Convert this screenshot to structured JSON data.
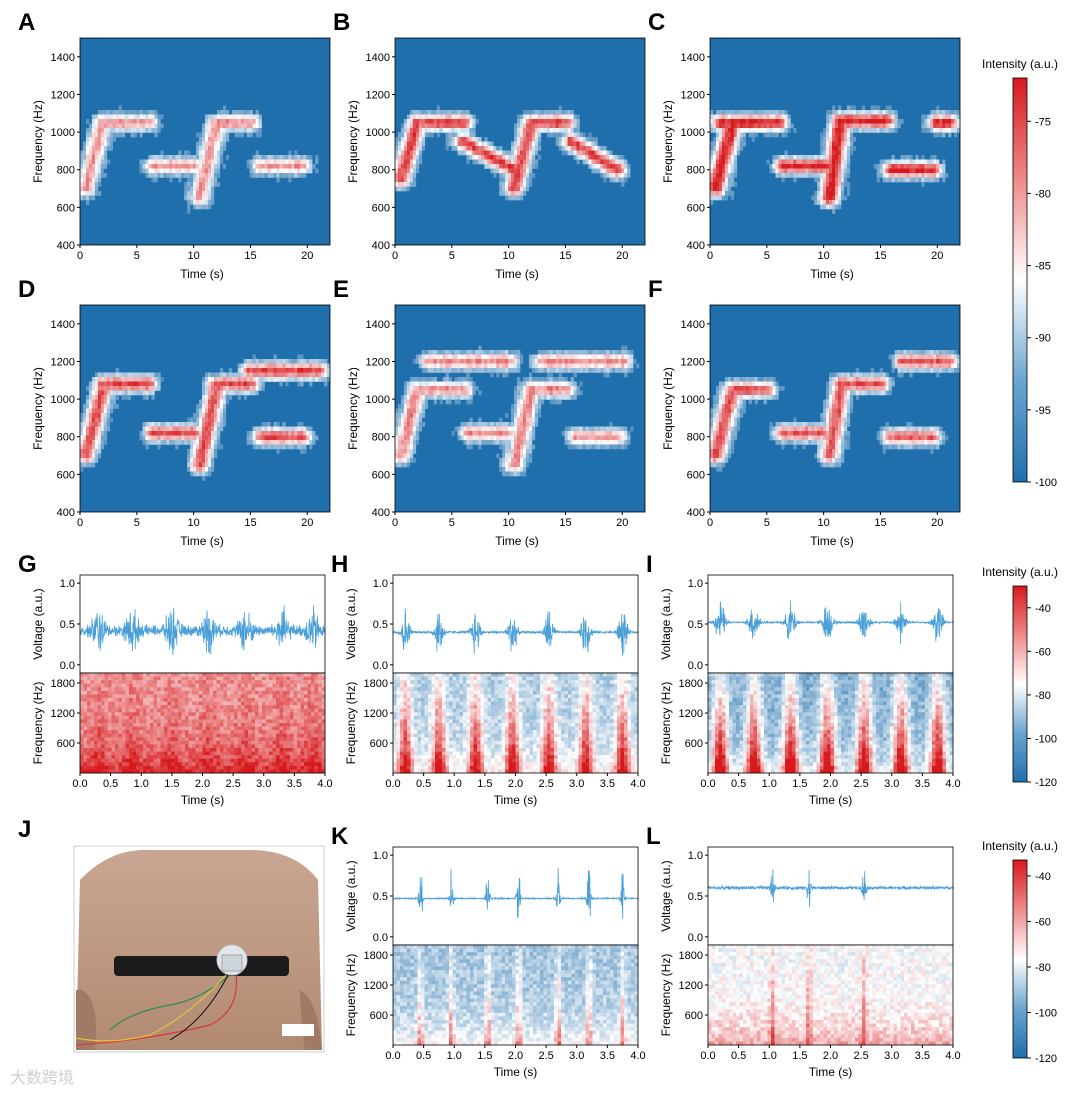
{
  "watermark": "大数跨境",
  "colors": {
    "blue": "#1f6fad",
    "white": "#ffffff",
    "red": "#d7191c",
    "wave": "#4a9fd8"
  },
  "chart_data": [
    {
      "panel": "A",
      "type": "heatmap",
      "xlabel": "Time (s)",
      "ylabel": "Frequency (Hz)",
      "xlim": [
        0,
        22
      ],
      "ylim": [
        400,
        1500
      ],
      "xticks": [
        "0",
        "5",
        "10",
        "15",
        "20"
      ],
      "yticks": [
        "400",
        "600",
        "800",
        "1000",
        "1200",
        "1400"
      ],
      "ridges": [
        [
          0.5,
          700,
          2.0,
          1050
        ],
        [
          2.0,
          1050,
          6.0,
          1050
        ],
        [
          6.5,
          820,
          10.0,
          820
        ],
        [
          10.5,
          650,
          12.0,
          1050
        ],
        [
          12.0,
          1050,
          15.0,
          1050
        ],
        [
          16.0,
          820,
          19.5,
          820
        ]
      ],
      "ridge_peak": 0.45
    },
    {
      "panel": "B",
      "type": "heatmap",
      "xlabel": "Time (s)",
      "ylabel": "Frequency (Hz)",
      "xlim": [
        0,
        22
      ],
      "ylim": [
        400,
        1500
      ],
      "xticks": [
        "0",
        "5",
        "10",
        "15",
        "20"
      ],
      "yticks": [
        "400",
        "600",
        "800",
        "1000",
        "1200",
        "1400"
      ],
      "ridges": [
        [
          0.5,
          750,
          2.0,
          1050
        ],
        [
          2.0,
          1050,
          6.0,
          1050
        ],
        [
          6.0,
          950,
          10.5,
          800
        ],
        [
          10.5,
          700,
          12.0,
          1050
        ],
        [
          12.0,
          1050,
          15.0,
          1050
        ],
        [
          15.5,
          950,
          19.5,
          800
        ]
      ],
      "ridge_peak": 0.85
    },
    {
      "panel": "C",
      "type": "heatmap",
      "xlabel": "Time (s)",
      "ylabel": "Frequency (Hz)",
      "xlim": [
        0,
        22
      ],
      "ylim": [
        400,
        1500
      ],
      "xticks": [
        "0",
        "5",
        "10",
        "15",
        "20"
      ],
      "yticks": [
        "400",
        "600",
        "800",
        "1000",
        "1200",
        "1400"
      ],
      "ridges": [
        [
          0.5,
          700,
          2.0,
          1050
        ],
        [
          1.0,
          1050,
          6.0,
          1050
        ],
        [
          6.5,
          820,
          10.0,
          820
        ],
        [
          10.5,
          650,
          11.5,
          1050
        ],
        [
          11.5,
          1060,
          15.5,
          1060
        ],
        [
          16.0,
          800,
          19.5,
          800
        ],
        [
          20.0,
          1050,
          21.0,
          1050
        ]
      ],
      "ridge_peak": 1.0
    },
    {
      "panel": "D",
      "type": "heatmap",
      "xlabel": "Time (s)",
      "ylabel": "Frequency (Hz)",
      "xlim": [
        0,
        22
      ],
      "ylim": [
        400,
        1500
      ],
      "xticks": [
        "0",
        "5",
        "10",
        "15",
        "20"
      ],
      "yticks": [
        "400",
        "600",
        "800",
        "1000",
        "1200",
        "1400"
      ],
      "ridges": [
        [
          0.5,
          700,
          2.0,
          1050
        ],
        [
          2.0,
          1080,
          6.0,
          1080
        ],
        [
          6.5,
          820,
          10.0,
          820
        ],
        [
          10.5,
          650,
          12.0,
          1050
        ],
        [
          12.0,
          1080,
          15.0,
          1080
        ],
        [
          16.0,
          800,
          19.5,
          800
        ],
        [
          15.0,
          1150,
          21.0,
          1150
        ]
      ],
      "ridge_peak": 0.8
    },
    {
      "panel": "E",
      "type": "heatmap",
      "xlabel": "Time (s)",
      "ylabel": "Frequency (Hz)",
      "xlim": [
        0,
        22
      ],
      "ylim": [
        400,
        1500
      ],
      "xticks": [
        "0",
        "5",
        "10",
        "15",
        "20"
      ],
      "yticks": [
        "400",
        "600",
        "800",
        "1000",
        "1200",
        "1400"
      ],
      "ridges": [
        [
          0.5,
          700,
          2.0,
          1050
        ],
        [
          2.0,
          1050,
          6.0,
          1050
        ],
        [
          6.5,
          820,
          10.0,
          820
        ],
        [
          10.5,
          650,
          12.0,
          1050
        ],
        [
          12.0,
          1050,
          15.0,
          1050
        ],
        [
          16.0,
          800,
          19.5,
          800
        ],
        [
          3.0,
          1200,
          10.0,
          1200
        ],
        [
          13.0,
          1200,
          20.0,
          1200
        ]
      ],
      "ridge_peak": 0.5
    },
    {
      "panel": "F",
      "type": "heatmap",
      "xlabel": "Time (s)",
      "ylabel": "Frequency (Hz)",
      "xlim": [
        0,
        22
      ],
      "ylim": [
        400,
        1500
      ],
      "xticks": [
        "0",
        "5",
        "10",
        "15",
        "20"
      ],
      "yticks": [
        "400",
        "600",
        "800",
        "1000",
        "1200",
        "1400"
      ],
      "ridges": [
        [
          0.5,
          700,
          2.0,
          1050
        ],
        [
          2.0,
          1050,
          5.0,
          1050
        ],
        [
          6.5,
          820,
          10.0,
          820
        ],
        [
          10.5,
          700,
          11.5,
          1050
        ],
        [
          11.5,
          1080,
          15.0,
          1080
        ],
        [
          16.0,
          800,
          19.5,
          800
        ],
        [
          17.0,
          1200,
          21.0,
          1200
        ]
      ],
      "ridge_peak": 0.75
    },
    {
      "panel": "G",
      "type": "line+heatmap",
      "ylabel_top": "Voltage (a.u.)",
      "ylabel_bottom": "Frequency (Hz)",
      "xlabel": "Time (s)",
      "xlim": [
        0,
        4
      ],
      "ylim_top": [
        -0.1,
        1.1
      ],
      "ylim_bottom": [
        0,
        2000
      ],
      "xticks": [
        "0.0",
        "0.5",
        "1.0",
        "1.5",
        "2.0",
        "2.5",
        "3.0",
        "3.5",
        "4.0"
      ],
      "yticks_top": [
        "0.0",
        "0.5",
        "1.0"
      ],
      "yticks_bottom": [
        "600",
        "1200",
        "1800"
      ],
      "baseline": 0.42,
      "noise": 0.08,
      "bursts": [
        0.3,
        0.85,
        1.5,
        2.1,
        2.7,
        3.3,
        3.8
      ],
      "burst_amp": 0.28,
      "burst_width": 0.1,
      "spec_bg": 0.45,
      "spec_burst": 0.15
    },
    {
      "panel": "H",
      "type": "line+heatmap",
      "ylabel_top": "Voltage (a.u.)",
      "ylabel_bottom": "Frequency (Hz)",
      "xlabel": "Time (s)",
      "xlim": [
        0,
        4
      ],
      "ylim_top": [
        -0.1,
        1.1
      ],
      "ylim_bottom": [
        0,
        2000
      ],
      "xticks": [
        "0.0",
        "0.5",
        "1.0",
        "1.5",
        "2.0",
        "2.5",
        "3.0",
        "3.5",
        "4.0"
      ],
      "yticks_top": [
        "0.0",
        "0.5",
        "1.0"
      ],
      "yticks_bottom": [
        "600",
        "1200",
        "1800"
      ],
      "baseline": 0.4,
      "noise": 0.015,
      "bursts": [
        0.2,
        0.75,
        1.35,
        1.95,
        2.55,
        3.15,
        3.75
      ],
      "burst_amp": 0.35,
      "burst_width": 0.07,
      "spec_bg": -0.35,
      "spec_burst": 0.95
    },
    {
      "panel": "I",
      "type": "line+heatmap",
      "ylabel_top": "Voltage (a.u.)",
      "ylabel_bottom": "Frequency (Hz)",
      "xlabel": "Time (s)",
      "xlim": [
        0,
        4
      ],
      "ylim_top": [
        -0.1,
        1.1
      ],
      "ylim_bottom": [
        0,
        2000
      ],
      "xticks": [
        "0.0",
        "0.5",
        "1.0",
        "1.5",
        "2.0",
        "2.5",
        "3.0",
        "3.5",
        "4.0"
      ],
      "yticks_top": [
        "0.0",
        "0.5",
        "1.0"
      ],
      "yticks_bottom": [
        "600",
        "1200",
        "1800"
      ],
      "baseline": 0.52,
      "noise": 0.012,
      "bursts": [
        0.2,
        0.75,
        1.35,
        1.95,
        2.55,
        3.15,
        3.75
      ],
      "burst_amp": 0.3,
      "burst_width": 0.08,
      "spec_bg": -0.55,
      "spec_burst": 1.2
    },
    {
      "panel": "K",
      "type": "line+heatmap",
      "ylabel_top": "Voltage (a.u.)",
      "ylabel_bottom": "Frequency (Hz)",
      "xlabel": "Time (s)",
      "xlim": [
        0,
        4
      ],
      "ylim_top": [
        -0.1,
        1.1
      ],
      "ylim_bottom": [
        0,
        2000
      ],
      "xticks": [
        "0.0",
        "0.5",
        "1.0",
        "1.5",
        "2.0",
        "2.5",
        "3.0",
        "3.5",
        "4.0"
      ],
      "yticks_top": [
        "0.0",
        "0.5",
        "1.0"
      ],
      "yticks_bottom": [
        "600",
        "1200",
        "1800"
      ],
      "baseline": 0.47,
      "noise": 0.01,
      "bursts": [
        0.45,
        0.95,
        1.55,
        2.05,
        2.7,
        3.2,
        3.75
      ],
      "burst_amp": 0.45,
      "burst_width": 0.03,
      "spec_bg": -0.4,
      "spec_burst": 0.5
    },
    {
      "panel": "L",
      "type": "line+heatmap",
      "ylabel_top": "Voltage (a.u.)",
      "ylabel_bottom": "Frequency (Hz)",
      "xlabel": "Time (s)",
      "xlim": [
        0,
        4
      ],
      "ylim_top": [
        -0.1,
        1.1
      ],
      "ylim_bottom": [
        0,
        2000
      ],
      "xticks": [
        "0.0",
        "0.5",
        "1.0",
        "1.5",
        "2.0",
        "2.5",
        "3.0",
        "3.5",
        "4.0"
      ],
      "yticks_top": [
        "0.0",
        "0.5",
        "1.0"
      ],
      "yticks_bottom": [
        "600",
        "1200",
        "1800"
      ],
      "baseline": 0.6,
      "noise": 0.025,
      "bursts": [
        1.05,
        1.65,
        2.55
      ],
      "burst_amp": 0.3,
      "burst_width": 0.03,
      "spec_bg": -0.05,
      "spec_burst": 0.4
    }
  ],
  "colorbars": [
    {
      "title": "Intensity (a.u.)",
      "range": [
        -100,
        -72
      ],
      "ticks": [
        "-75",
        "-80",
        "-85",
        "-90",
        "-95",
        "-100"
      ],
      "tick_values": [
        -75,
        -80,
        -85,
        -90,
        -95,
        -100
      ]
    },
    {
      "title": "Intensity (a.u.)",
      "range": [
        -120,
        -30
      ],
      "ticks": [
        "-40",
        "-60",
        "-80",
        "-100",
        "-120"
      ],
      "tick_values": [
        -40,
        -60,
        -80,
        -100,
        -120
      ]
    },
    {
      "title": "Intensity (a.u.)",
      "range": [
        -120,
        -33
      ],
      "ticks": [
        "-40",
        "-60",
        "-80",
        "-100",
        "-120"
      ],
      "tick_values": [
        -40,
        -60,
        -80,
        -100,
        -120
      ]
    }
  ],
  "panel_J": {
    "letter": "J",
    "image": "photo of torso wearing chest strap sensor"
  }
}
